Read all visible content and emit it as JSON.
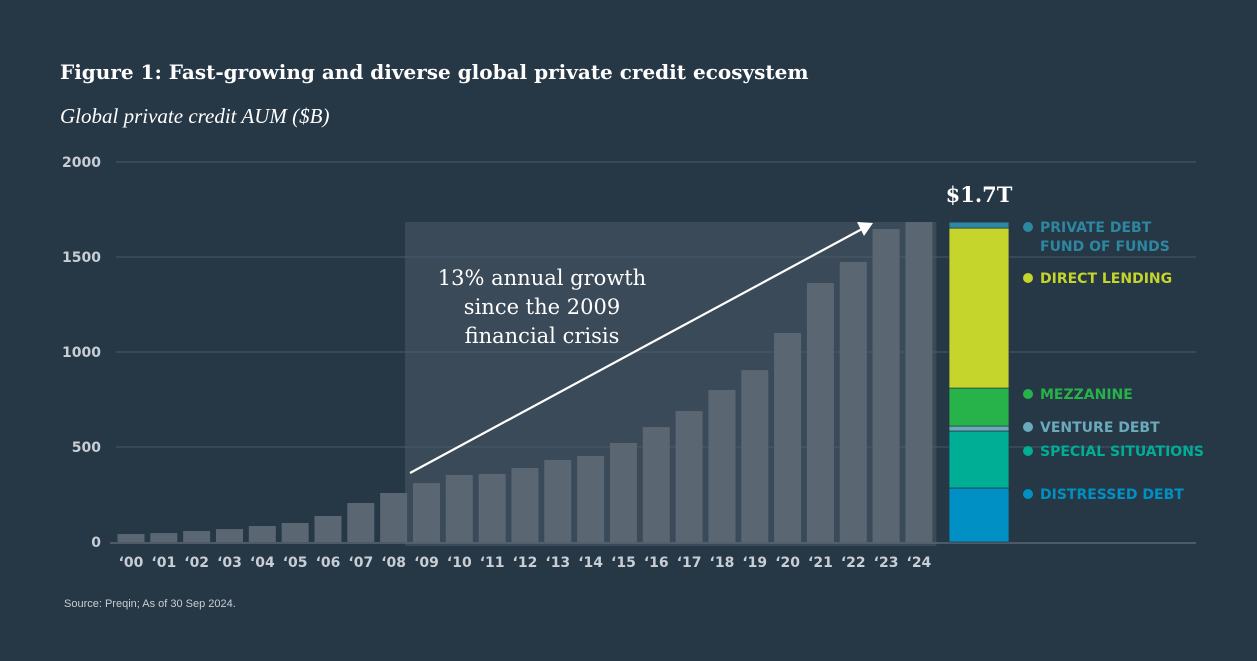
{
  "chart_data": {
    "type": "bar",
    "title": "Figure 1: Fast-growing and diverse global private credit ecosystem",
    "subtitle": "Global private credit AUM ($B)",
    "categories": [
      "‘00",
      "‘01",
      "‘02",
      "‘03",
      "‘04",
      "‘05",
      "‘06",
      "‘07",
      "‘08",
      "‘09",
      "‘10",
      "‘11",
      "‘12",
      "‘13",
      "‘14",
      "‘15",
      "‘16",
      "‘17",
      "‘18",
      "‘19",
      "‘20",
      "‘21",
      "‘22",
      "‘23",
      "‘24"
    ],
    "values": [
      42,
      47,
      58,
      68,
      84,
      100,
      137,
      205,
      258,
      310,
      353,
      358,
      389,
      432,
      453,
      521,
      605,
      689,
      800,
      905,
      1100,
      1363,
      1474,
      1647,
      1684
    ],
    "ylim": [
      0,
      2000
    ],
    "yticks": [
      0,
      500,
      1000,
      1500,
      2000
    ],
    "ytick_labels": [
      "0",
      "500",
      "1000",
      "1500",
      "2000"
    ],
    "grid": true,
    "bar_color": "#5b6673",
    "highlight_region": {
      "from": "‘09",
      "to": "‘24"
    },
    "annotation": [
      "13% annual growth",
      "since the 2009",
      "financial crisis"
    ],
    "total_label": "$1.7T",
    "breakdown": [
      {
        "name": "DISTRESSED DEBT",
        "value": 284,
        "color": "#0190c4"
      },
      {
        "name": "SPECIAL SITUATIONS",
        "value": 300,
        "color": "#00ad95"
      },
      {
        "name": "VENTURE DEBT",
        "value": 26,
        "color": "#6aaabb"
      },
      {
        "name": "MEZZANINE",
        "value": 200,
        "color": "#27b34a"
      },
      {
        "name": "DIRECT LENDING",
        "value": 842,
        "color": "#c5d52c"
      },
      {
        "name": "PRIVATE DEBT FUND OF FUNDS",
        "lines": [
          "PRIVATE DEBT",
          "FUND OF FUNDS"
        ],
        "value": 32,
        "color": "#2e87a0"
      }
    ]
  },
  "source": "Source: Preqin; As of 30 Sep 2024."
}
